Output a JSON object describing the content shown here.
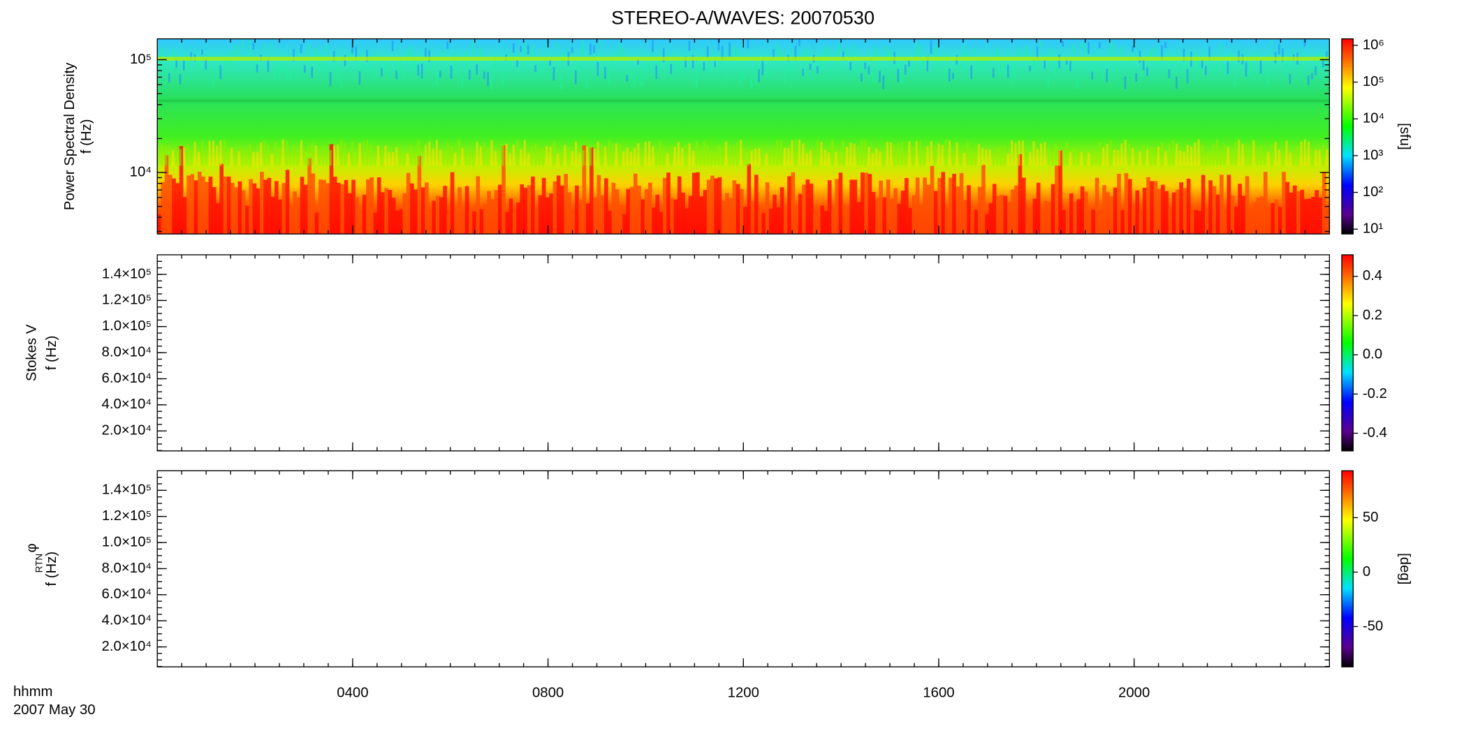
{
  "title": "STEREO-A/WAVES: 20070530",
  "x_label": [
    "hhmm",
    "2007 May 30"
  ],
  "chart_data": [
    {
      "type": "spectrogram",
      "ylabel": [
        "Power Spectral Density",
        "f (Hz)"
      ],
      "ylog": true,
      "ylim": [
        2850,
        153000
      ],
      "yticks": [
        {
          "value": 10000,
          "label": "10⁴"
        },
        {
          "value": 100000,
          "label": "10⁵"
        }
      ],
      "colorbar": {
        "log": true,
        "lim": [
          7.4,
          1500000
        ],
        "label": "[sfu]",
        "ticks": [
          {
            "value": 10,
            "label": "10¹"
          },
          {
            "value": 100,
            "label": "10²"
          },
          {
            "value": 1000,
            "label": "10³"
          },
          {
            "value": 10000,
            "label": "10⁴"
          },
          {
            "value": 100000,
            "label": "10⁵"
          },
          {
            "value": 1000000,
            "label": "10⁶"
          }
        ]
      }
    },
    {
      "type": "spectrogram",
      "ylabel": [
        "Stokes V",
        "f (Hz)"
      ],
      "ylog": false,
      "ylim": [
        4700,
        155000
      ],
      "yticks": [
        {
          "value": 20000,
          "label": "2.0×10⁴"
        },
        {
          "value": 40000,
          "label": "4.0×10⁴"
        },
        {
          "value": 60000,
          "label": "6.0×10⁴"
        },
        {
          "value": 80000,
          "label": "8.0×10⁴"
        },
        {
          "value": 100000,
          "label": "1.0×10⁵"
        },
        {
          "value": 120000,
          "label": "1.2×10⁵"
        },
        {
          "value": 140000,
          "label": "1.4×10⁵"
        }
      ],
      "colorbar": {
        "log": false,
        "lim": [
          -0.49,
          0.51
        ],
        "ticks": [
          -0.4,
          -0.2,
          {
            "value": 0,
            "label": "0.0"
          },
          0.2,
          0.4
        ]
      }
    },
    {
      "type": "spectrogram",
      "ylabel": [
        "φ",
        "RTN",
        "f (Hz)"
      ],
      "ylog": false,
      "ylim": [
        4700,
        155000
      ],
      "yticks": [
        {
          "value": 20000,
          "label": "2.0×10⁴"
        },
        {
          "value": 40000,
          "label": "4.0×10⁴"
        },
        {
          "value": 60000,
          "label": "6.0×10⁴"
        },
        {
          "value": 80000,
          "label": "8.0×10⁴"
        },
        {
          "value": 100000,
          "label": "1.0×10⁵"
        },
        {
          "value": 120000,
          "label": "1.2×10⁵"
        },
        {
          "value": 140000,
          "label": "1.4×10⁵"
        }
      ],
      "xlim": [
        0,
        24
      ],
      "xticks": [
        {
          "value": 4,
          "label": "0400"
        },
        {
          "value": 8,
          "label": "0800"
        },
        {
          "value": 12,
          "label": "1200"
        },
        {
          "value": 16,
          "label": "1600"
        },
        {
          "value": 20,
          "label": "2000"
        }
      ],
      "colorbar": {
        "log": false,
        "lim": [
          -87,
          93
        ],
        "label": "[deg]",
        "ticks": [
          -50,
          0,
          50
        ]
      }
    }
  ]
}
